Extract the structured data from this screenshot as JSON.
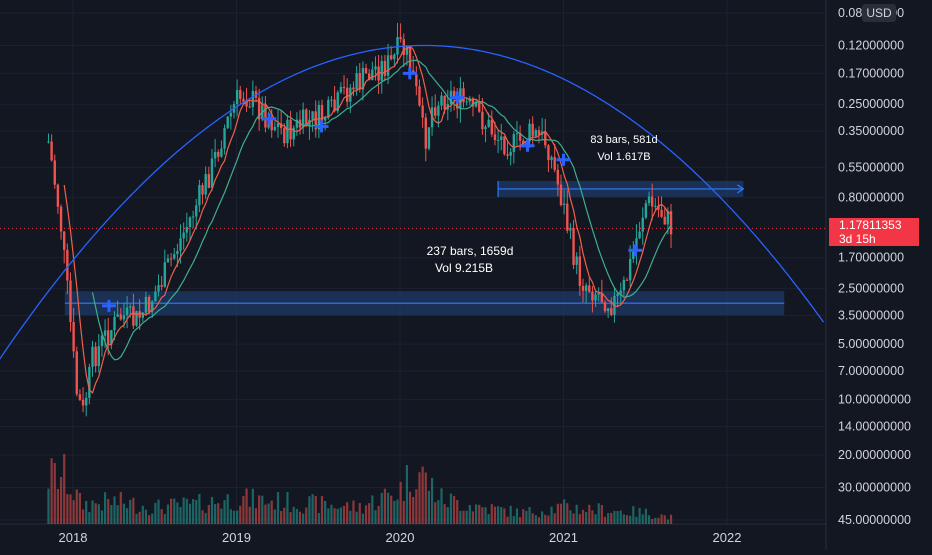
{
  "axis": {
    "currency_label": "USD",
    "last_price": "1.17811353",
    "countdown": "3d 15h"
  },
  "colors": {
    "background": "#131722",
    "up": "#26a69a",
    "down": "#ef5350",
    "ma_fast": "#f0614a",
    "ma_slow": "#3fae8f",
    "arc": "#2962ff",
    "range_box": "#1e3a66",
    "range_line": "#2f7bff",
    "axis_text": "#d1d4dc"
  },
  "chart_data": {
    "type": "candlestick",
    "y_scale": "log-inverted",
    "title": "",
    "xlabel": "",
    "ylabel": "",
    "ylim": [
      0.08,
      45
    ],
    "y_ticks": [
      "0.08000000",
      "0.12000000",
      "0.17000000",
      "0.25000000",
      "0.35000000",
      "0.55000000",
      "0.80000000",
      "1.17811353",
      "1.70000000",
      "2.50000000",
      "3.50000000",
      "5.00000000",
      "7.00000000",
      "10.00000000",
      "14.00000000",
      "20.00000000",
      "30.00000000",
      "45.00000000"
    ],
    "x_ticks": [
      "2018",
      "2019",
      "2020",
      "2021",
      "2022"
    ],
    "x_tick_years": [
      2018,
      2019,
      2020,
      2021,
      2022
    ],
    "last_price": 1.17811353,
    "annotations": [
      {
        "text_1": "237 bars, 1659d",
        "text_2": "Vol 9.215B",
        "level": 3.0,
        "start": 2017.95,
        "end": 2022.35
      },
      {
        "text_1": "83 bars, 581d",
        "text_2": "Vol 1.617B",
        "level": 0.72,
        "start": 2020.6,
        "end": 2022.1
      }
    ],
    "arc_peak_year": 2020.15,
    "arc_peak_value": 0.12,
    "price_path": [
      [
        2017.85,
        0.4
      ],
      [
        2017.92,
        1.0
      ],
      [
        2017.98,
        3.5
      ],
      [
        2018.02,
        9.0
      ],
      [
        2018.06,
        12.0
      ],
      [
        2018.12,
        6.0
      ],
      [
        2018.2,
        4.5
      ],
      [
        2018.3,
        3.5
      ],
      [
        2018.38,
        3.8
      ],
      [
        2018.45,
        3.2
      ],
      [
        2018.55,
        2.2
      ],
      [
        2018.65,
        1.4
      ],
      [
        2018.75,
        0.9
      ],
      [
        2018.85,
        0.55
      ],
      [
        2018.92,
        0.35
      ],
      [
        2019.0,
        0.24
      ],
      [
        2019.05,
        0.22
      ],
      [
        2019.12,
        0.25
      ],
      [
        2019.2,
        0.3
      ],
      [
        2019.3,
        0.36
      ],
      [
        2019.4,
        0.32
      ],
      [
        2019.5,
        0.3
      ],
      [
        2019.6,
        0.27
      ],
      [
        2019.65,
        0.22
      ],
      [
        2019.75,
        0.19
      ],
      [
        2019.85,
        0.16
      ],
      [
        2019.95,
        0.15
      ],
      [
        2020.0,
        0.12
      ],
      [
        2020.05,
        0.14
      ],
      [
        2020.1,
        0.22
      ],
      [
        2020.15,
        0.4
      ],
      [
        2020.2,
        0.25
      ],
      [
        2020.3,
        0.22
      ],
      [
        2020.4,
        0.25
      ],
      [
        2020.5,
        0.3
      ],
      [
        2020.6,
        0.38
      ],
      [
        2020.7,
        0.42
      ],
      [
        2020.8,
        0.36
      ],
      [
        2020.9,
        0.4
      ],
      [
        2020.95,
        0.6
      ],
      [
        2021.0,
        0.9
      ],
      [
        2021.05,
        1.5
      ],
      [
        2021.1,
        2.2
      ],
      [
        2021.2,
        2.6
      ],
      [
        2021.3,
        3.0
      ],
      [
        2021.35,
        2.8
      ],
      [
        2021.4,
        2.0
      ],
      [
        2021.45,
        1.3
      ],
      [
        2021.5,
        0.85
      ],
      [
        2021.55,
        0.9
      ],
      [
        2021.62,
        1.0
      ],
      [
        2021.66,
        1.178
      ]
    ],
    "volume_path": [
      [
        2017.95,
        0.85
      ],
      [
        2018.05,
        0.35
      ],
      [
        2018.25,
        0.4
      ],
      [
        2018.5,
        0.3
      ],
      [
        2018.75,
        0.35
      ],
      [
        2019.0,
        0.45
      ],
      [
        2019.25,
        0.4
      ],
      [
        2019.5,
        0.35
      ],
      [
        2019.75,
        0.3
      ],
      [
        2020.0,
        0.6
      ],
      [
        2020.1,
        1.0
      ],
      [
        2020.25,
        0.45
      ],
      [
        2020.5,
        0.3
      ],
      [
        2020.75,
        0.2
      ],
      [
        2021.0,
        0.3
      ],
      [
        2021.25,
        0.25
      ],
      [
        2021.5,
        0.2
      ],
      [
        2021.66,
        0.12
      ]
    ]
  }
}
